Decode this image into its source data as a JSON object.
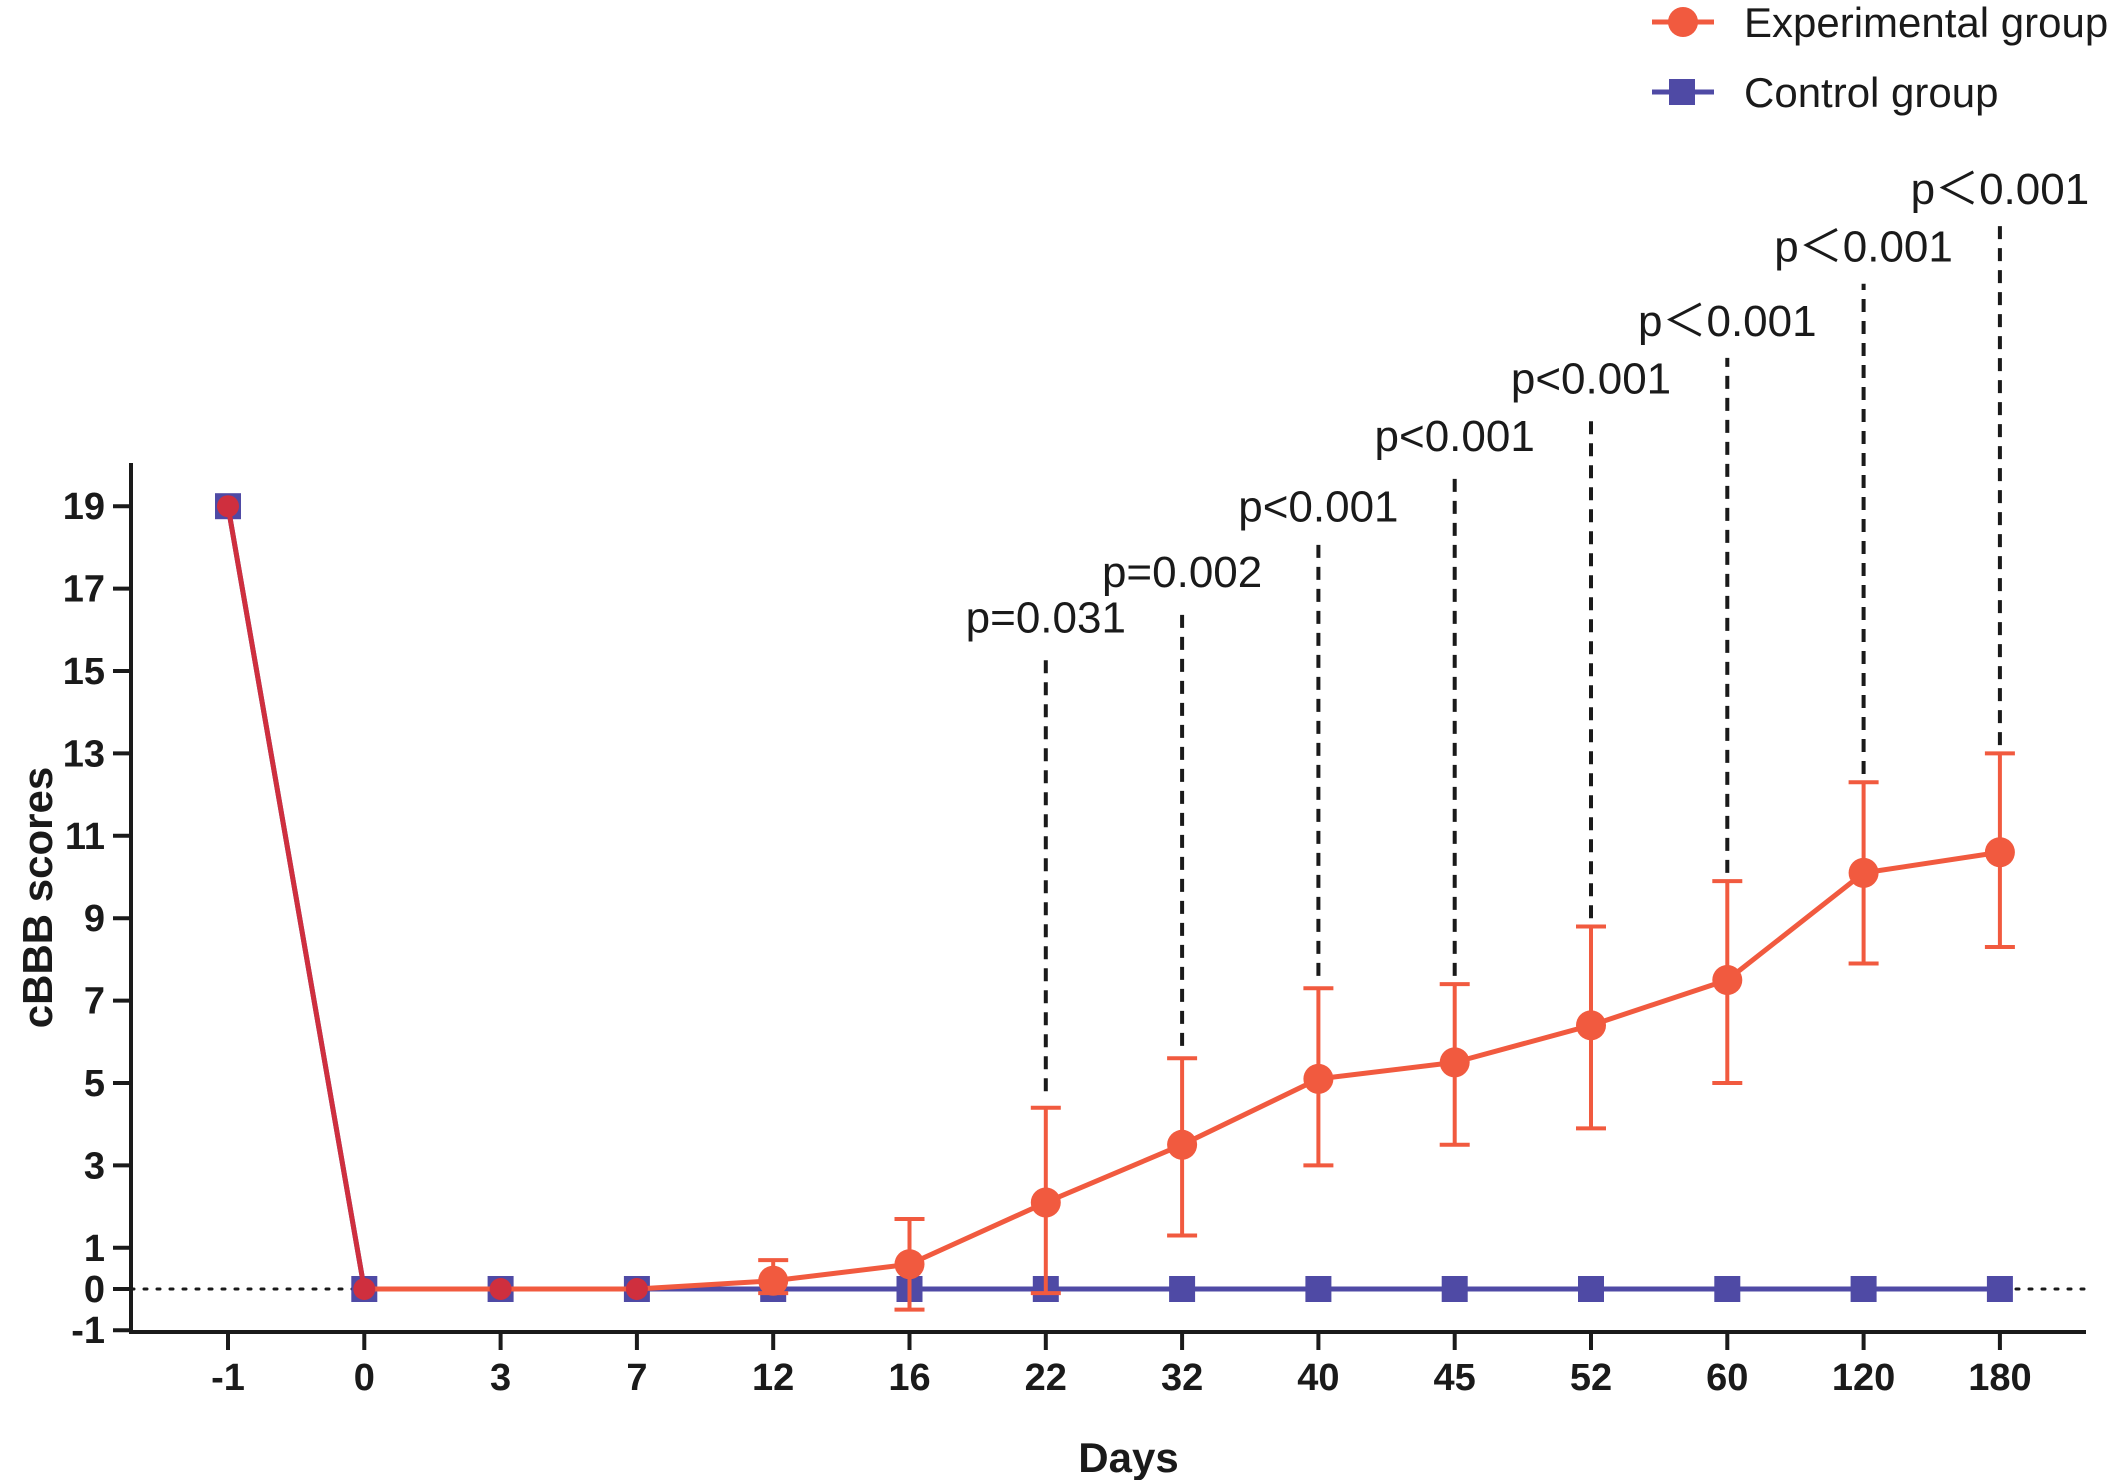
{
  "colors": {
    "experimental": "#f15a3f",
    "control": "#4f4aa5",
    "overlap": "#cf2f3e",
    "axis": "#1a1a1a"
  },
  "chart_data": {
    "type": "line",
    "xlabel": "Days",
    "ylabel": "cBBB scores",
    "categories": [
      "-1",
      "0",
      "3",
      "7",
      "12",
      "16",
      "22",
      "32",
      "40",
      "45",
      "52",
      "60",
      "120",
      "180"
    ],
    "ylim": [
      -1,
      20
    ],
    "yticks": [
      -1,
      0,
      1,
      3,
      5,
      7,
      9,
      11,
      13,
      15,
      17,
      19
    ],
    "grid": false,
    "legend_position": "top-right",
    "baseline": 0,
    "series": [
      {
        "name": "Experimental group",
        "marker": "circle",
        "values": [
          19,
          0,
          0,
          0,
          0.2,
          0.6,
          2.1,
          3.5,
          5.1,
          5.5,
          6.4,
          7.5,
          10.1,
          10.6
        ],
        "error_low": [
          19,
          0,
          0,
          0,
          -0.1,
          -0.5,
          -0.1,
          1.3,
          3.0,
          3.5,
          3.9,
          5.0,
          7.9,
          8.3
        ],
        "error_high": [
          19,
          0,
          0,
          0,
          0.7,
          1.7,
          4.4,
          5.6,
          7.3,
          7.4,
          8.8,
          9.9,
          12.3,
          13.0
        ]
      },
      {
        "name": "Control group",
        "marker": "square",
        "values": [
          19,
          0,
          0,
          0,
          0,
          0,
          0,
          0,
          0,
          0,
          0,
          0,
          0,
          0
        ]
      }
    ],
    "annotations": [
      {
        "category": "22",
        "text": "p=0.031",
        "line_from": 4.8,
        "line_to": 15.4
      },
      {
        "category": "32",
        "text": "p=0.002",
        "line_from": 5.9,
        "line_to": 16.5
      },
      {
        "category": "40",
        "text": "p<0.001",
        "line_from": 7.6,
        "line_to": 18.1
      },
      {
        "category": "45",
        "text": "p<0.001",
        "line_from": 7.6,
        "line_to": 19.8
      },
      {
        "category": "52",
        "text": "p<0.001",
        "line_from": 9.0,
        "line_to": 21.2
      },
      {
        "category": "60",
        "text": "p＜0.001",
        "line_from": 10.1,
        "line_to": 22.6
      },
      {
        "category": "120",
        "text": "p＜0.001",
        "line_from": 12.5,
        "line_to": 24.4
      },
      {
        "category": "180",
        "text": "p＜0.001",
        "line_from": 13.2,
        "line_to": 25.8
      }
    ]
  }
}
